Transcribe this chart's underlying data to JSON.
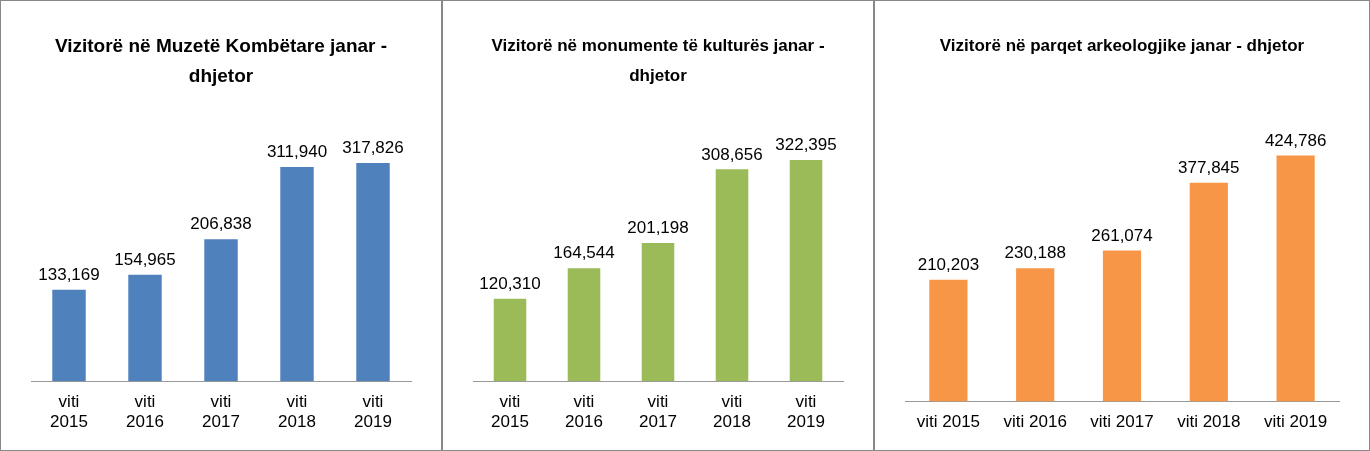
{
  "chart_data": [
    {
      "type": "bar",
      "title": "Vizitorë në Muzetë Kombëtare janar - dhjetor",
      "categories": [
        "viti 2015",
        "viti 2016",
        "viti 2017",
        "viti 2018",
        "viti 2019"
      ],
      "values": [
        133169,
        154965,
        206838,
        311940,
        317826
      ],
      "value_labels": [
        "133,169",
        "154,965",
        "206,838",
        "311,940",
        "317,826"
      ],
      "color": "#4f81bd",
      "tick_labels": "x"
    },
    {
      "type": "bar",
      "title": "Vizitorë në monumente të kulturës janar - dhjetor",
      "categories": [
        "viti 2015",
        "viti 2016",
        "viti 2017",
        "viti 2018",
        "viti 2019"
      ],
      "values": [
        120310,
        164544,
        201198,
        308656,
        322395
      ],
      "value_labels": [
        "120,310",
        "164,544",
        "201,198",
        "308,656",
        "322,395"
      ],
      "color": "#9bbb59",
      "tick_labels": "x"
    },
    {
      "type": "bar",
      "title": "Vizitorë në parqet arkeologjike janar - dhjetor",
      "categories": [
        "viti 2015",
        "viti 2016",
        "viti 2017",
        "viti 2018",
        "viti 2019"
      ],
      "values": [
        210203,
        230188,
        261074,
        377845,
        424786
      ],
      "value_labels": [
        "210,203",
        "230,188",
        "261,074",
        "377,845",
        "424,786"
      ],
      "color": "#f79646",
      "tick_labels": "x"
    }
  ]
}
